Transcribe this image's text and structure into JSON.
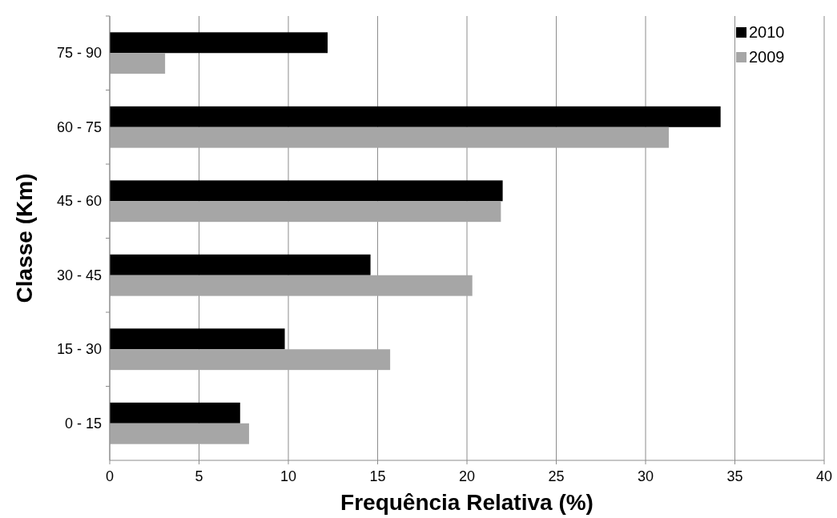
{
  "chart_data": {
    "type": "bar",
    "orientation": "horizontal",
    "xlabel": "Frequência Relativa (%)",
    "ylabel": "Classe (Km)",
    "categories": [
      "75 - 90",
      "60 - 75",
      "45 - 60",
      "30 - 45",
      "15 - 30",
      "0 - 15"
    ],
    "series": [
      {
        "name": "2010",
        "color": "#000000",
        "values": [
          12.2,
          34.2,
          22.0,
          14.6,
          9.8,
          7.3
        ]
      },
      {
        "name": "2009",
        "color": "#a6a6a6",
        "values": [
          3.1,
          31.3,
          21.9,
          20.3,
          15.7,
          7.8
        ]
      }
    ],
    "xlim": [
      0,
      40
    ],
    "xticks": [
      0,
      5,
      10,
      15,
      20,
      25,
      30,
      35,
      40
    ],
    "grid": "x",
    "legend": "top right"
  }
}
